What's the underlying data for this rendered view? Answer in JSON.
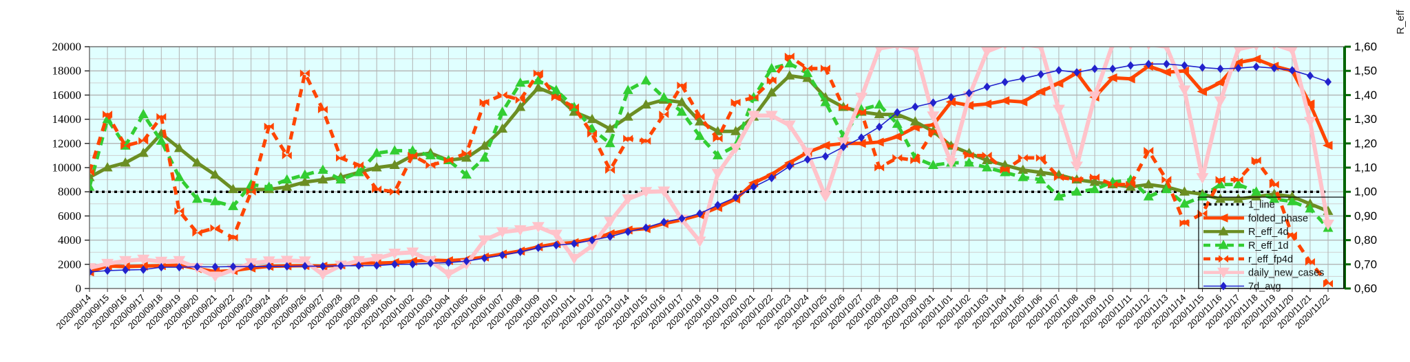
{
  "chart_data": {
    "type": "line",
    "title": "",
    "xlabel": "",
    "background_plot": "#e0ffff",
    "background_page": "#ffffff",
    "grid_color_major": "#b2b2b2",
    "grid_color_minor": "#cfcfcf",
    "border_color": "#7a7a7a",
    "x": {
      "dates": [
        "2020/09/14",
        "2020/09/15",
        "2020/09/16",
        "2020/09/17",
        "2020/09/18",
        "2020/09/19",
        "2020/09/20",
        "2020/09/21",
        "2020/09/22",
        "2020/09/23",
        "2020/09/24",
        "2020/09/25",
        "2020/09/26",
        "2020/09/27",
        "2020/09/28",
        "2020/09/29",
        "2020/09/30",
        "2020/10/01",
        "2020/10/02",
        "2020/10/03",
        "2020/10/04",
        "2020/10/05",
        "2020/10/06",
        "2020/10/07",
        "2020/10/08",
        "2020/10/09",
        "2020/10/10",
        "2020/10/11",
        "2020/10/12",
        "2020/10/13",
        "2020/10/14",
        "2020/10/15",
        "2020/10/16",
        "2020/10/17",
        "2020/10/18",
        "2020/10/19",
        "2020/10/20",
        "2020/10/21",
        "2020/10/22",
        "2020/10/23",
        "2020/10/24",
        "2020/10/25",
        "2020/10/26",
        "2020/10/27",
        "2020/10/28",
        "2020/10/29",
        "2020/10/30",
        "2020/10/31",
        "2020/11/01",
        "2020/11/02",
        "2020/11/03",
        "2020/11/04",
        "2020/11/05",
        "2020/11/06",
        "2020/11/07",
        "2020/11/08",
        "2020/11/09",
        "2020/11/10",
        "2020/11/11",
        "2020/11/12",
        "2020/11/13",
        "2020/11/14",
        "2020/11/15",
        "2020/11/16",
        "2020/11/17",
        "2020/11/18",
        "2020/11/19",
        "2020/11/20",
        "2020/11/21",
        "2020/11/22"
      ]
    },
    "left_axis": {
      "range": [
        0,
        20000
      ],
      "tick_step": 2000,
      "ticks": [
        "0",
        "2000",
        "4000",
        "6000",
        "8000",
        "10000",
        "12000",
        "14000",
        "16000",
        "18000",
        "20000"
      ]
    },
    "right_axis": {
      "label": "R_eff",
      "range": [
        0.6,
        1.6
      ],
      "tick_step": 0.1,
      "ticks": [
        "0,60",
        "0,70",
        "0,80",
        "0,90",
        "1,00",
        "1,10",
        "1,20",
        "1,30",
        "1,40",
        "1,50",
        "1,60"
      ],
      "axis_color": "#006400"
    },
    "one_line_value": 1.0,
    "series": [
      {
        "name": "1_line",
        "axis": "right",
        "color": "#000000",
        "line": "dotted",
        "width": 3.5,
        "marker": "none",
        "constant": 1.0
      },
      {
        "name": "folded_phase",
        "axis": "left",
        "color": "#ff4500",
        "line": "solid",
        "width": 5,
        "marker": "arrow-left",
        "values": [
          1370,
          1870,
          1800,
          1850,
          1890,
          1930,
          1650,
          1400,
          1480,
          1690,
          1830,
          1870,
          1890,
          1840,
          1950,
          2100,
          2100,
          2150,
          2250,
          2350,
          2300,
          2400,
          2600,
          2850,
          3100,
          3450,
          3700,
          3800,
          4100,
          4530,
          4840,
          4950,
          5370,
          5680,
          6090,
          6700,
          7400,
          8740,
          9430,
          10400,
          11260,
          11830,
          12000,
          12000,
          12110,
          12570,
          13330,
          13540,
          15430,
          15140,
          15260,
          15540,
          15430,
          16290,
          16970,
          17830,
          15830,
          17430,
          17340,
          18390,
          17890,
          18000,
          16290,
          17030,
          18680,
          18970,
          18390,
          18000,
          15260,
          11830
        ]
      },
      {
        "name": "R_eff_4d",
        "axis": "right",
        "color": "#6b8e23",
        "line": "solid",
        "width": 5,
        "marker": "triangle-up",
        "values": [
          1.06,
          1.1,
          1.12,
          1.16,
          1.24,
          1.18,
          1.12,
          1.07,
          1.01,
          1.01,
          1.01,
          1.02,
          1.04,
          1.05,
          1.06,
          1.08,
          1.1,
          1.11,
          1.15,
          1.16,
          1.13,
          1.14,
          1.19,
          1.26,
          1.35,
          1.43,
          1.4,
          1.33,
          1.3,
          1.26,
          1.31,
          1.36,
          1.38,
          1.37,
          1.29,
          1.25,
          1.25,
          1.31,
          1.41,
          1.48,
          1.47,
          1.39,
          1.35,
          1.33,
          1.32,
          1.32,
          1.29,
          1.25,
          1.19,
          1.16,
          1.13,
          1.11,
          1.09,
          1.08,
          1.07,
          1.05,
          1.04,
          1.03,
          1.02,
          1.03,
          1.02,
          1.0,
          0.99,
          0.97,
          0.97,
          0.98,
          0.99,
          0.98,
          0.95,
          0.92
        ]
      },
      {
        "name": "R_eff_1d",
        "axis": "right",
        "color": "#32cd32",
        "line": "dashed",
        "width": 5,
        "marker": "triangle-up",
        "values": [
          1.02,
          1.3,
          1.19,
          1.32,
          1.21,
          1.06,
          0.97,
          0.96,
          0.94,
          1.03,
          1.02,
          1.05,
          1.07,
          1.09,
          1.05,
          1.08,
          1.16,
          1.17,
          1.17,
          1.15,
          1.13,
          1.07,
          1.14,
          1.33,
          1.45,
          1.46,
          1.42,
          1.35,
          1.26,
          1.2,
          1.42,
          1.46,
          1.39,
          1.33,
          1.23,
          1.15,
          1.19,
          1.39,
          1.51,
          1.53,
          1.49,
          1.37,
          1.23,
          1.34,
          1.36,
          1.28,
          1.14,
          1.11,
          1.12,
          1.12,
          1.1,
          1.08,
          1.06,
          1.05,
          0.98,
          1.0,
          1.01,
          1.04,
          1.05,
          0.98,
          1.01,
          0.95,
          0.98,
          1.03,
          1.03,
          1.0,
          0.97,
          0.96,
          0.93,
          0.85
        ]
      },
      {
        "name": "r_eff_fp4d",
        "axis": "right",
        "color": "#ff4500",
        "line": "dashed",
        "width": 5,
        "marker": "bowtie",
        "values": [
          1.08,
          1.32,
          1.19,
          1.21,
          1.31,
          0.92,
          0.83,
          0.85,
          0.81,
          1.0,
          1.27,
          1.15,
          1.49,
          1.34,
          1.14,
          1.11,
          1.01,
          1.0,
          1.15,
          1.11,
          1.13,
          1.16,
          1.37,
          1.4,
          1.38,
          1.49,
          1.39,
          1.35,
          1.24,
          1.09,
          1.22,
          1.21,
          1.32,
          1.44,
          1.31,
          1.22,
          1.37,
          1.39,
          1.46,
          1.56,
          1.51,
          1.51,
          1.35,
          1.33,
          1.1,
          1.14,
          1.13,
          1.25,
          1.19,
          1.15,
          1.15,
          1.09,
          1.14,
          1.14,
          1.06,
          1.05,
          1.06,
          1.03,
          1.03,
          1.17,
          1.05,
          0.87,
          0.91,
          1.05,
          1.05,
          1.13,
          1.03,
          0.82,
          0.71,
          0.62
        ]
      },
      {
        "name": "daily_new_cases",
        "axis": "left",
        "color": "#ffc3ca",
        "line": "solid",
        "width": 6,
        "marker": "arrow-down",
        "values": [
          1700,
          2050,
          2290,
          2400,
          2230,
          2290,
          1700,
          1000,
          1540,
          2100,
          2260,
          2310,
          2260,
          1150,
          1900,
          2290,
          2470,
          2900,
          2990,
          2290,
          1180,
          2000,
          4000,
          4670,
          4840,
          5100,
          4470,
          2480,
          3530,
          5530,
          7390,
          8000,
          8040,
          5700,
          3900,
          9500,
          11600,
          14300,
          14300,
          13500,
          11250,
          7600,
          12100,
          15800,
          19850,
          20100,
          19850,
          14250,
          10400,
          15900,
          19600,
          20200,
          20200,
          20000,
          14800,
          10100,
          15900,
          20200,
          20200,
          20200,
          20000,
          16400,
          9150,
          15500,
          19800,
          20100,
          20200,
          19700,
          13800,
          5300
        ]
      },
      {
        "name": "7d_avg",
        "axis": "left",
        "color": "#2222cc",
        "line": "solid",
        "width": 1.6,
        "marker": "diamond",
        "values": [
          1370,
          1480,
          1530,
          1560,
          1760,
          1760,
          1800,
          1790,
          1810,
          1815,
          1830,
          1830,
          1850,
          1840,
          1870,
          1890,
          1900,
          2000,
          2010,
          2090,
          2140,
          2260,
          2510,
          2760,
          3030,
          3370,
          3580,
          3710,
          4000,
          4290,
          4690,
          5030,
          5500,
          5790,
          6200,
          6900,
          7540,
          8400,
          9140,
          10100,
          10670,
          10930,
          11710,
          12480,
          13370,
          14570,
          15030,
          15370,
          15830,
          16170,
          16680,
          17080,
          17370,
          17710,
          18050,
          17880,
          18170,
          18170,
          18450,
          18570,
          18570,
          18450,
          18280,
          18170,
          18230,
          18340,
          18230,
          18050,
          17600,
          17090
        ]
      }
    ],
    "legend": {
      "position": "bottom-right",
      "entries": [
        "1_line",
        "folded_phase",
        "R_eff_4d",
        "R_eff_1d",
        "r_eff_fp4d",
        "daily_new_cases",
        "7d_avg"
      ]
    }
  }
}
